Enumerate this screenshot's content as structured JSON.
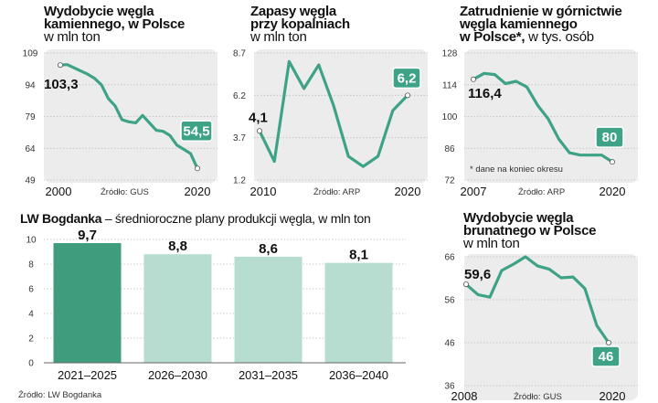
{
  "colors": {
    "line": "#3ea386",
    "bg": "#ececec",
    "badge": "#3ea386",
    "bar_dark": "#3f9c7d",
    "bar_light": "#b7ddd0",
    "grid": "#bdbdbd"
  },
  "chart_data": [
    {
      "id": "coal",
      "type": "line",
      "title_lines": [
        "Wydobycie węgla",
        "kamiennego, w Polsce"
      ],
      "unit": "w mln ton",
      "yticks": [
        "109",
        "94",
        "79",
        "64",
        "49"
      ],
      "ylim": [
        49,
        109
      ],
      "x_start_label": "2000",
      "x_end_label": "2020",
      "source": "Źródło: GUS",
      "start_label": "103,3",
      "end_label": "54,5",
      "x": [
        2000,
        2001,
        2002,
        2003,
        2004,
        2005,
        2006,
        2007,
        2008,
        2009,
        2010,
        2011,
        2012,
        2013,
        2014,
        2015,
        2016,
        2017,
        2018,
        2019,
        2020
      ],
      "values": [
        103.3,
        103.5,
        102.0,
        100.5,
        99.0,
        97.0,
        94.0,
        87.5,
        84.0,
        77.5,
        76.5,
        76.0,
        79.5,
        76.0,
        72.5,
        72.0,
        70.0,
        65.5,
        63.5,
        61.5,
        54.5
      ]
    },
    {
      "id": "stocks",
      "type": "line",
      "title_lines": [
        "Zapasy węgla",
        "przy kopalniach"
      ],
      "unit": "w mln ton",
      "yticks": [
        "8.7",
        "6.2",
        "3.7",
        "1.2"
      ],
      "ylim": [
        1.2,
        8.7
      ],
      "x_start_label": "2010",
      "x_end_label": "2020",
      "source": "Źródło: ARP",
      "start_label": "4,1",
      "end_label": "6,2",
      "x": [
        2010,
        2011,
        2012,
        2013,
        2014,
        2015,
        2016,
        2017,
        2018,
        2019,
        2020
      ],
      "values": [
        4.1,
        2.3,
        8.2,
        6.6,
        8.0,
        5.6,
        2.6,
        2.0,
        2.6,
        5.3,
        6.2
      ]
    },
    {
      "id": "employment",
      "type": "line",
      "title_lines": [
        "Zatrudnienie w górnictwie",
        "węgla kamiennego"
      ],
      "title_third_bold": "w Polsce*,",
      "unit": "w tys. osób",
      "yticks": [
        "128",
        "114",
        "100",
        "86",
        "72"
      ],
      "ylim": [
        72,
        128
      ],
      "x_start_label": "2007",
      "x_end_label": "2020",
      "source": "Źródło: ARP",
      "note": "* dane na koniec okresu",
      "start_label": "116,4",
      "end_label": "80",
      "x": [
        2007,
        2008,
        2009,
        2010,
        2011,
        2012,
        2013,
        2014,
        2015,
        2016,
        2017,
        2018,
        2019,
        2020
      ],
      "values": [
        116.4,
        119.0,
        118.5,
        114.5,
        115.5,
        113.0,
        105.0,
        99.0,
        90.0,
        84.0,
        83.0,
        83.0,
        83.0,
        80.0
      ]
    },
    {
      "id": "bogdanka",
      "type": "bar",
      "title_bold": "LW Bogdanka",
      "title_rest": " – średnioroczne plany produkcji węgla, w mln ton",
      "yticks": [
        "10",
        "8",
        "6",
        "4",
        "2",
        "0"
      ],
      "ylim": [
        0,
        10
      ],
      "categories": [
        "2021–2025",
        "2026–2030",
        "2031–2035",
        "2036–2040"
      ],
      "value_labels": [
        "9,7",
        "8,8",
        "8,6",
        "8,1"
      ],
      "values": [
        9.7,
        8.8,
        8.6,
        8.1
      ],
      "source": "Źródło: LW Bogdanka"
    },
    {
      "id": "lignite",
      "type": "line",
      "title_lines": [
        "Wydobycie węgla",
        "brunatnego w Polsce"
      ],
      "unit": "w mln ton",
      "yticks": [
        "66",
        "56",
        "46",
        "36"
      ],
      "ylim": [
        36,
        66
      ],
      "x_start_label": "2008",
      "x_end_label": "2020",
      "source": "Źródło: GUS",
      "start_label": "59,6",
      "end_label": "46",
      "x": [
        2008,
        2009,
        2010,
        2011,
        2012,
        2013,
        2014,
        2015,
        2016,
        2017,
        2018,
        2019,
        2020
      ],
      "values": [
        59.6,
        57.2,
        56.6,
        62.8,
        64.3,
        66.0,
        63.9,
        63.1,
        61.1,
        61.3,
        58.6,
        50.0,
        46.0
      ]
    }
  ]
}
